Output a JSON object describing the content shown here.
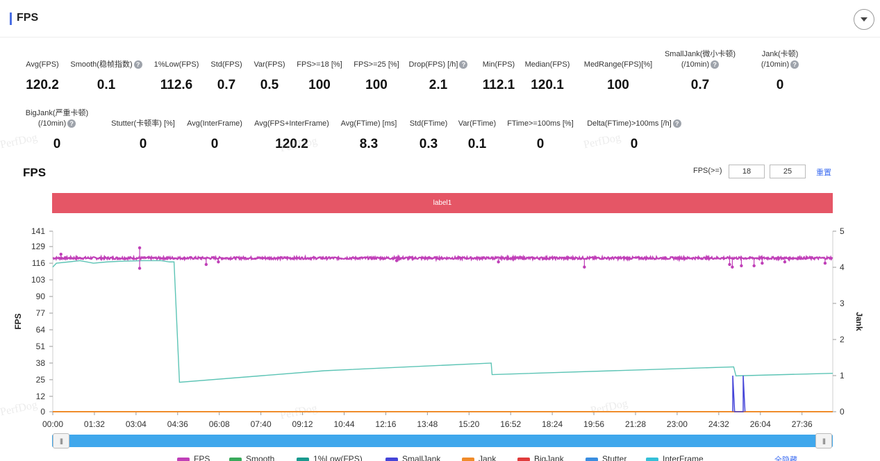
{
  "header": {
    "title": "FPS"
  },
  "stats_row1": [
    {
      "label": "Avg(FPS)",
      "value": "120.2",
      "help": false
    },
    {
      "label": "Smooth(稳帧指数)",
      "value": "0.1",
      "help": true
    },
    {
      "label": "1%Low(FPS)",
      "value": "112.6",
      "help": false
    },
    {
      "label": "Std(FPS)",
      "value": "0.7",
      "help": false
    },
    {
      "label": "Var(FPS)",
      "value": "0.5",
      "help": false
    },
    {
      "label": "FPS>=18 [%]",
      "value": "100",
      "help": false
    },
    {
      "label": "FPS>=25 [%]",
      "value": "100",
      "help": false
    },
    {
      "label": "Drop(FPS) [/h]",
      "value": "2.1",
      "help": true
    },
    {
      "label": "Min(FPS)",
      "value": "112.1",
      "help": false
    },
    {
      "label": "Median(FPS)",
      "value": "120.1",
      "help": false
    },
    {
      "label": "MedRange(FPS)[%]",
      "value": "100",
      "help": false
    },
    {
      "label": "SmallJank(微小卡顿)",
      "label2": "(/10min)",
      "value": "0.7",
      "help": true
    },
    {
      "label": "Jank(卡顿)",
      "label2": "(/10min)",
      "value": "0",
      "help": true
    }
  ],
  "stats_row2": [
    {
      "label": "BigJank(严重卡顿)",
      "label2": "(/10min)",
      "value": "0",
      "help": true
    },
    {
      "label": "Stutter(卡顿率) [%]",
      "value": "0",
      "help": false
    },
    {
      "label": "Avg(InterFrame)",
      "value": "0",
      "help": false
    },
    {
      "label": "Avg(FPS+InterFrame)",
      "value": "120.2",
      "help": false
    },
    {
      "label": "Avg(FTime) [ms]",
      "value": "8.3",
      "help": false
    },
    {
      "label": "Std(FTime)",
      "value": "0.3",
      "help": false
    },
    {
      "label": "Var(FTime)",
      "value": "0.1",
      "help": false
    },
    {
      "label": "FTime>=100ms [%]",
      "value": "0",
      "help": false
    },
    {
      "label": "Delta(FTime)>100ms [/h]",
      "value": "0",
      "help": true
    }
  ],
  "chart_section": {
    "title": "FPS",
    "threshold_label": "FPS(>=)",
    "threshold_1": "18",
    "threshold_2": "25",
    "reset_label": "重置",
    "band_label": "label1",
    "hide_all_label": "全隐藏"
  },
  "watermark_text": "PerfDog",
  "chart_data": {
    "type": "line",
    "ylabel": "FPS",
    "y2label": "Jank",
    "y_ticks": [
      0,
      12,
      25,
      38,
      51,
      64,
      77,
      90,
      103,
      116,
      129,
      141
    ],
    "y2_ticks": [
      0,
      1,
      2,
      3,
      4,
      5
    ],
    "ylim": [
      0,
      141
    ],
    "y2lim": [
      0,
      5
    ],
    "x_ticks": [
      "00:00",
      "01:32",
      "03:04",
      "04:36",
      "06:08",
      "07:40",
      "09:12",
      "10:44",
      "12:16",
      "13:48",
      "15:20",
      "16:52",
      "18:24",
      "19:56",
      "21:28",
      "23:00",
      "24:32",
      "26:04",
      "27:36"
    ],
    "x_tick_seconds": [
      0,
      92,
      184,
      276,
      368,
      460,
      552,
      644,
      736,
      828,
      920,
      1012,
      1104,
      1196,
      1288,
      1380,
      1472,
      1564,
      1656
    ],
    "x_max_seconds": 1724,
    "legend": [
      {
        "name": "FPS",
        "color": "#c040b8"
      },
      {
        "name": "Smooth",
        "color": "#3aaa5c"
      },
      {
        "name": "1%Low(FPS)",
        "color": "#1a9a8f"
      },
      {
        "name": "SmallJank",
        "color": "#4545d8"
      },
      {
        "name": "Jank",
        "color": "#f08c2a"
      },
      {
        "name": "BigJank",
        "color": "#e03c3c"
      },
      {
        "name": "Stutter",
        "color": "#3a8ee0"
      },
      {
        "name": "InterFrame",
        "color": "#36c0d8"
      }
    ],
    "series": [
      {
        "name": "FPS",
        "approx_value": 120,
        "outliers": [
          {
            "t": 18,
            "v": 123
          },
          {
            "t": 192,
            "v": 128
          },
          {
            "t": 192,
            "v": 112
          },
          {
            "t": 339,
            "v": 115
          },
          {
            "t": 366,
            "v": 117
          },
          {
            "t": 760,
            "v": 118
          },
          {
            "t": 985,
            "v": 117
          },
          {
            "t": 1175,
            "v": 113
          },
          {
            "t": 1496,
            "v": 115
          },
          {
            "t": 1502,
            "v": 113
          },
          {
            "t": 1522,
            "v": 114
          },
          {
            "t": 1550,
            "v": 114
          },
          {
            "t": 1568,
            "v": 116
          },
          {
            "t": 1618,
            "v": 117
          },
          {
            "t": 1707,
            "v": 116
          }
        ]
      },
      {
        "name": "1%Low(FPS)",
        "points": [
          [
            0,
            113
          ],
          [
            8,
            116
          ],
          [
            35,
            117
          ],
          [
            60,
            118
          ],
          [
            90,
            116
          ],
          [
            120,
            117
          ],
          [
            150,
            117.5
          ],
          [
            200,
            118
          ],
          [
            240,
            118
          ],
          [
            258,
            117
          ],
          [
            268,
            117
          ],
          [
            280,
            23
          ],
          [
            600,
            32
          ],
          [
            969,
            38
          ],
          [
            971,
            29
          ],
          [
            1505,
            35
          ],
          [
            1510,
            28
          ],
          [
            1724,
            30
          ]
        ]
      },
      {
        "name": "SmallJank",
        "points": [
          [
            1503,
            0
          ],
          [
            1503,
            1
          ],
          [
            1507,
            0
          ],
          [
            1526,
            0
          ],
          [
            1526,
            1
          ],
          [
            1530,
            0
          ]
        ]
      },
      {
        "name": "Jank",
        "approx_value": 0
      }
    ]
  }
}
